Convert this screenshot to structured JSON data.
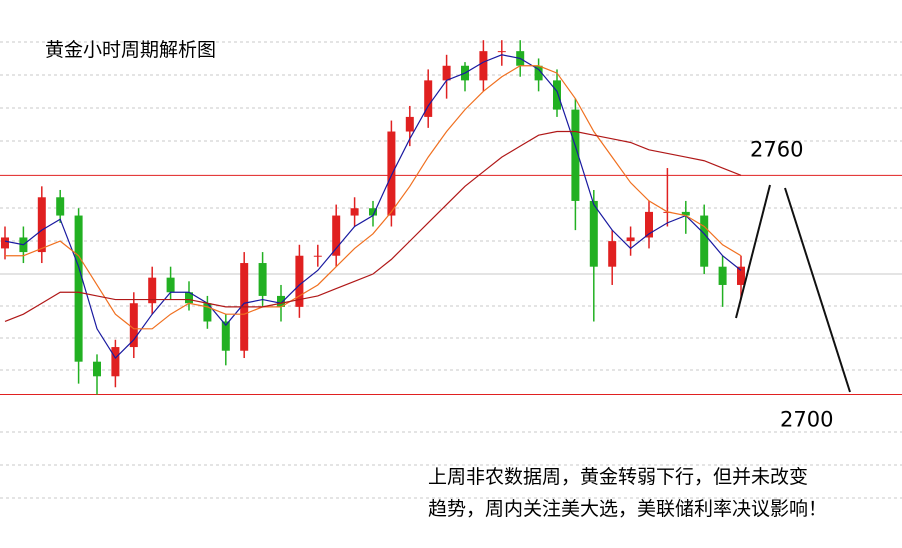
{
  "chart_data": {
    "type": "candlestick",
    "title": "黄金小时周期解析图",
    "annotation": [
      "上周非农数据周，黄金转弱下行，但并未改变",
      "趋势，周内关注美大选，美联储利率决议影响！"
    ],
    "ylim": [
      2658,
      2808
    ],
    "levels": [
      2760,
      2700
    ],
    "level_color": "#e02020",
    "up_color": "#e02020",
    "down_color": "#22b022",
    "open": [
      2740,
      2743,
      2739,
      2754,
      2749,
      2709,
      2705,
      2713,
      2725,
      2732,
      2728,
      2725,
      2720,
      2712,
      2736,
      2727,
      2724,
      2738,
      2738,
      2749,
      2751,
      2749,
      2772,
      2776,
      2786,
      2790,
      2786,
      2794,
      2794,
      2790,
      2786,
      2778,
      2753,
      2735,
      2742,
      2743,
      2750,
      2750,
      2749,
      2735,
      2730
    ],
    "high": [
      2746,
      2746,
      2757,
      2756,
      2751,
      2711,
      2715,
      2728,
      2735,
      2735,
      2731,
      2727,
      2722,
      2739,
      2739,
      2730,
      2741,
      2741,
      2752,
      2754,
      2753,
      2775,
      2779,
      2789,
      2793,
      2791,
      2797,
      2797,
      2797,
      2792,
      2789,
      2781,
      2756,
      2745,
      2746,
      2753,
      2762,
      2753,
      2752,
      2738,
      2738
    ],
    "low": [
      2737,
      2736,
      2736,
      2747,
      2703,
      2700,
      2702,
      2710,
      2722,
      2726,
      2723,
      2718,
      2708,
      2710,
      2724,
      2720,
      2721,
      2735,
      2735,
      2746,
      2746,
      2746,
      2768,
      2773,
      2781,
      2783,
      2783,
      2790,
      2787,
      2783,
      2776,
      2745,
      2720,
      2730,
      2738,
      2740,
      2746,
      2744,
      2733,
      2724,
      2726
    ],
    "close": [
      2743,
      2739,
      2754,
      2749,
      2709,
      2705,
      2713,
      2725,
      2732,
      2728,
      2725,
      2720,
      2712,
      2736,
      2727,
      2724,
      2738,
      2738,
      2749,
      2751,
      2749,
      2772,
      2776,
      2786,
      2790,
      2786,
      2794,
      2794,
      2790,
      2786,
      2778,
      2753,
      2735,
      2742,
      2743,
      2750,
      2750,
      2749,
      2735,
      2730,
      2735
    ],
    "series": [
      {
        "color": "#1a1aa0",
        "values": [
          2742,
          2741,
          2745,
          2748,
          2735,
          2718,
          2710,
          2715,
          2722,
          2728,
          2728,
          2725,
          2719,
          2725,
          2726,
          2725,
          2730,
          2734,
          2740,
          2746,
          2749,
          2760,
          2770,
          2779,
          2786,
          2788,
          2791,
          2793,
          2792,
          2789,
          2783,
          2768,
          2752,
          2745,
          2740,
          2744,
          2747,
          2749,
          2744,
          2738,
          2734
        ]
      },
      {
        "color": "#f07020",
        "values": [
          2738,
          2738,
          2740,
          2742,
          2738,
          2730,
          2722,
          2718,
          2718,
          2722,
          2725,
          2724,
          2722,
          2722,
          2724,
          2724,
          2727,
          2730,
          2735,
          2740,
          2744,
          2750,
          2757,
          2765,
          2772,
          2778,
          2783,
          2787,
          2790,
          2790,
          2788,
          2781,
          2772,
          2765,
          2758,
          2753,
          2750,
          2749,
          2746,
          2741,
          2738
        ]
      },
      {
        "color": "#b01818",
        "values": [
          2720,
          2722,
          2725,
          2728,
          2728,
          2727,
          2726,
          2726,
          2726,
          2726,
          2726,
          2725,
          2724,
          2724,
          2724,
          2725,
          2726,
          2727,
          2729,
          2731,
          2733,
          2737,
          2742,
          2747,
          2752,
          2757,
          2761,
          2765,
          2768,
          2771,
          2772,
          2772,
          2771,
          2770,
          2769,
          2767,
          2766,
          2765,
          2764,
          2762,
          2760
        ]
      }
    ]
  }
}
